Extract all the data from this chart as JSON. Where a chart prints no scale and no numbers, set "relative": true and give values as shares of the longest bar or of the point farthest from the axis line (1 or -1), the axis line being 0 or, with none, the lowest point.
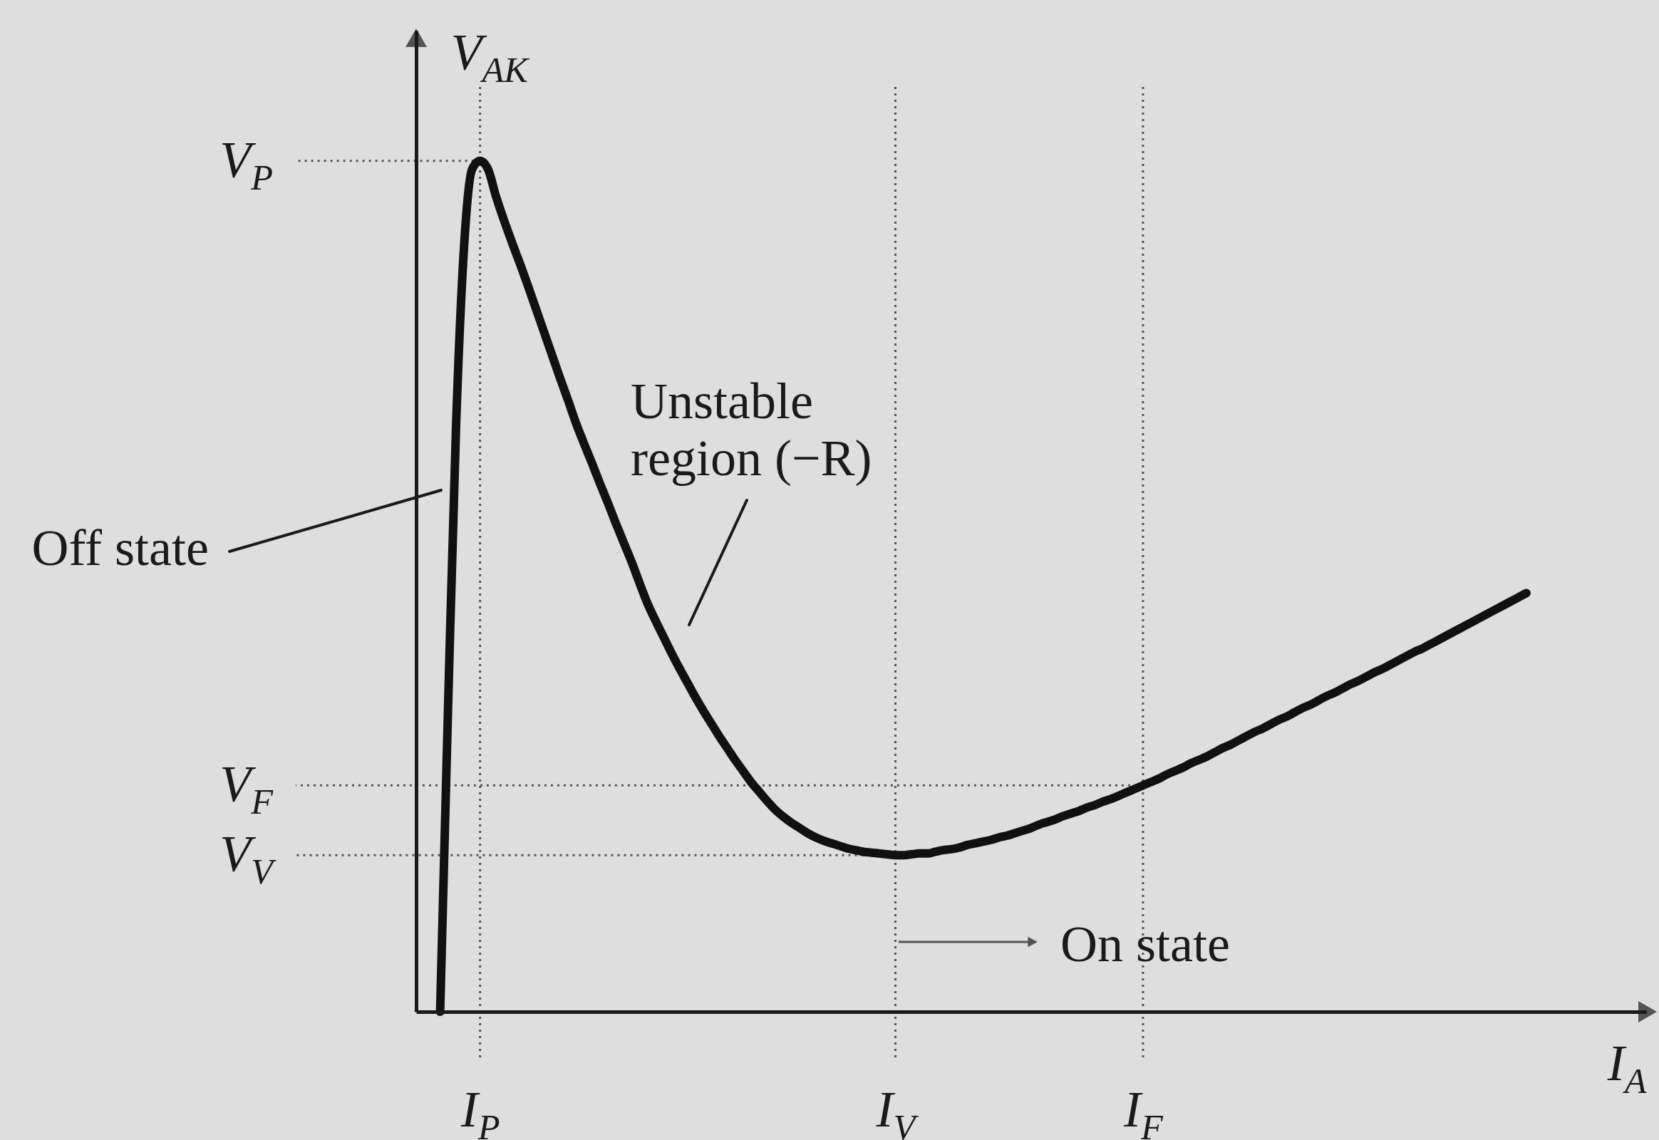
{
  "chart_data": {
    "type": "line",
    "relative": true,
    "xlabel": "I$_{A}$",
    "ylabel": "V$_{AK}$",
    "categories": [
      null,
      null,
      null,
      null,
      null,
      null,
      null,
      null,
      "I$_{P}$",
      null,
      null,
      null,
      null,
      null,
      null,
      null,
      null,
      null,
      null,
      null,
      null,
      null,
      null,
      null,
      null,
      null,
      null,
      null,
      null,
      null,
      null,
      null,
      null,
      null,
      null,
      null,
      null,
      null,
      null,
      null,
      null,
      null,
      null,
      null,
      null,
      null,
      null,
      null,
      null,
      null,
      null,
      null,
      null,
      null,
      null,
      null,
      null,
      null,
      null,
      null,
      "I$_{V}$",
      null,
      null,
      null,
      null,
      null,
      null,
      null,
      null,
      null,
      null,
      null,
      null,
      null,
      null,
      null,
      null,
      null,
      null,
      null,
      null,
      null,
      null,
      null,
      null,
      null,
      null,
      null,
      null,
      null,
      null,
      "I$_{F}$",
      null,
      null,
      null,
      null,
      null,
      null,
      null,
      null,
      null,
      null,
      null,
      null,
      null,
      null,
      null,
      null,
      null,
      null,
      null,
      null,
      null,
      null,
      null,
      null,
      null,
      null,
      null,
      null,
      null,
      null,
      null,
      null,
      null,
      null,
      null,
      null,
      null,
      null,
      null,
      null,
      null,
      null,
      null,
      null,
      null,
      null,
      null,
      null,
      null,
      null,
      null,
      null,
      null,
      null,
      null,
      null,
      null,
      null,
      null,
      null,
      null,
      null,
      null
    ],
    "grid": "x",
    "series": [
      {
        "color": "#111111",
        "values": [
          null,
          null,
          null,
          0,
          0.36,
          0.69,
          0.9,
          0.99,
          1.0,
          0.99,
          0.958,
          0.93,
          0.904,
          0.879,
          0.853,
          0.826,
          0.799,
          0.772,
          0.745,
          0.719,
          0.692,
          0.668,
          0.645,
          0.621,
          0.598,
          0.574,
          0.551,
          0.528,
          0.503,
          0.479,
          0.459,
          0.44,
          0.421,
          0.403,
          0.386,
          0.369,
          0.353,
          0.338,
          0.323,
          0.309,
          0.295,
          0.282,
          0.269,
          0.258,
          0.247,
          0.237,
          0.229,
          0.222,
          0.216,
          0.21,
          0.205,
          0.201,
          0.198,
          0.195,
          0.192,
          0.19,
          0.188,
          0.187,
          0.186,
          0.185,
          0.184,
          0.184,
          0.185,
          0.186,
          0.186,
          0.188,
          0.19,
          0.191,
          0.193,
          0.196,
          0.198,
          0.2,
          0.202,
          0.205,
          0.207,
          0.21,
          0.213,
          0.216,
          0.22,
          0.223,
          0.226,
          0.23,
          0.233,
          0.236,
          0.24,
          0.243,
          0.247,
          0.25,
          0.254,
          0.258,
          0.262,
          0.266,
          0.27,
          0.274,
          0.279,
          0.283,
          0.287,
          0.292,
          0.296,
          0.3,
          0.305,
          0.31,
          0.314,
          0.319,
          0.324,
          0.329,
          0.333,
          0.338,
          0.343,
          0.347,
          0.352,
          0.357,
          0.361,
          0.366,
          0.371,
          0.375,
          0.38,
          0.385,
          0.389,
          0.394,
          0.399,
          0.403,
          0.408,
          0.413,
          0.418,
          0.423,
          0.427,
          0.432,
          0.437,
          0.442,
          0.447,
          0.452,
          0.457,
          0.462,
          0.467,
          0.472,
          0.477,
          0.482,
          0.487,
          0.492,
          null,
          null,
          null,
          null,
          null,
          null,
          null,
          null,
          null,
          null,
          null,
          null,
          null,
          null,
          null
        ]
      }
    ],
    "ref_lines": [
      {
        "axis": "y",
        "value": 1.0,
        "label": "V$_{P}$",
        "line_style": "dotted",
        "color": "#555555"
      },
      {
        "axis": "y",
        "value": 0.266,
        "label": "V$_{F}$",
        "line_style": "dotted",
        "color": "#555555"
      },
      {
        "axis": "y",
        "value": 0.184,
        "label": "V$_{V}$",
        "line_style": "dotted",
        "color": "#555555"
      }
    ],
    "annotations": [
      "Off state",
      "Unstable\nregion (−R)",
      "On state"
    ]
  }
}
